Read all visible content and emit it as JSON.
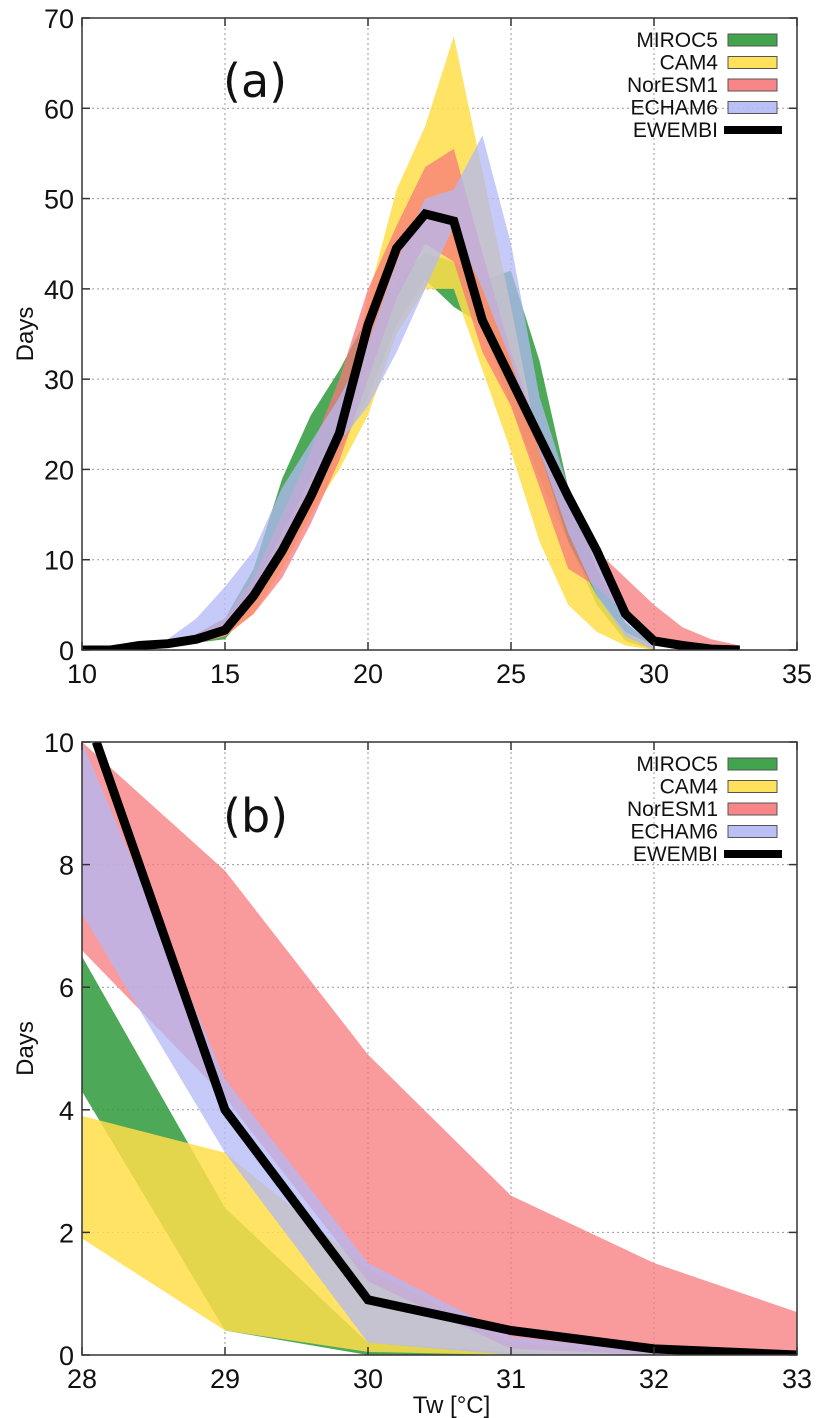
{
  "chart_data": [
    {
      "type": "area",
      "panel_label": "(a)",
      "title": "",
      "xlabel": "",
      "ylabel": "Days",
      "xlim": [
        10,
        35
      ],
      "ylim": [
        0,
        70
      ],
      "xticks": [
        10,
        15,
        20,
        25,
        30,
        35
      ],
      "yticks": [
        0,
        10,
        20,
        30,
        40,
        50,
        60,
        70
      ],
      "grid": true,
      "legend_position": "top-right",
      "legend": [
        "MIROC5",
        "CAM4",
        "NorESM1",
        "ECHAM6",
        "EWEMBI"
      ],
      "series": [
        {
          "name": "MIROC5",
          "kind": "band",
          "color": "#2e9a3a",
          "opacity": 0.85,
          "x": [
            12,
            13,
            14,
            15,
            16,
            17,
            18,
            19,
            20,
            21,
            22,
            23,
            24,
            25,
            26,
            27,
            28,
            29,
            30
          ],
          "lower": [
            0.2,
            0.4,
            0.8,
            1.2,
            5,
            11,
            17,
            22,
            28,
            36,
            41,
            38,
            36,
            27,
            19,
            12,
            5,
            1,
            0
          ],
          "upper": [
            0.5,
            0.9,
            1.8,
            3.5,
            9,
            19,
            26,
            31,
            37,
            41,
            44,
            43,
            41,
            42,
            32,
            18,
            9,
            3,
            0.5
          ]
        },
        {
          "name": "CAM4",
          "kind": "band",
          "color": "#ffde4a",
          "opacity": 0.85,
          "x": [
            12,
            13,
            14,
            15,
            16,
            17,
            18,
            19,
            20,
            21,
            22,
            23,
            24,
            25,
            26,
            27,
            28,
            29,
            30
          ],
          "lower": [
            0.2,
            0.4,
            0.8,
            1.5,
            4,
            9,
            15,
            20,
            26,
            35,
            40,
            40,
            31,
            22,
            12,
            5,
            2,
            0.5,
            0
          ],
          "upper": [
            0.5,
            0.9,
            1.8,
            3,
            7,
            13,
            19,
            25,
            39,
            51,
            58,
            68,
            53,
            38,
            22,
            12,
            6,
            2,
            0.5
          ]
        },
        {
          "name": "NorESM1",
          "kind": "band",
          "color": "#f7797b",
          "opacity": 0.75,
          "x": [
            12,
            13,
            14,
            15,
            16,
            17,
            18,
            19,
            20,
            21,
            22,
            23,
            24,
            25,
            26,
            27,
            28,
            29,
            30,
            31,
            32,
            33
          ],
          "lower": [
            0.2,
            0.4,
            0.8,
            1.5,
            4,
            8,
            14,
            21,
            30,
            39,
            45,
            43,
            33,
            27,
            18,
            9,
            7,
            4,
            1,
            0.3,
            0.1,
            0
          ],
          "upper": [
            0.5,
            0.9,
            1.8,
            3.5,
            8,
            15,
            22,
            30,
            40,
            47,
            53.5,
            55.5,
            44,
            33,
            24,
            16,
            11,
            8,
            5,
            2.5,
            1.2,
            0.5
          ]
        },
        {
          "name": "ECHAM6",
          "kind": "band",
          "color": "#b3b8f5",
          "opacity": 0.75,
          "x": [
            12,
            13,
            14,
            15,
            16,
            17,
            18,
            19,
            20,
            21,
            22,
            23,
            24,
            25,
            26,
            27,
            28,
            29,
            30
          ],
          "lower": [
            0.2,
            0.5,
            1,
            2,
            6,
            12,
            18,
            23,
            27,
            33,
            40,
            47,
            40,
            32,
            22,
            13,
            6,
            1.5,
            0
          ],
          "upper": [
            0.5,
            1.2,
            3.5,
            7,
            11,
            18,
            23,
            28,
            34,
            43,
            50,
            51,
            57,
            45,
            28,
            18,
            12,
            4,
            1
          ]
        },
        {
          "name": "EWEMBI",
          "kind": "line",
          "color": "#000000",
          "x": [
            10,
            11,
            12,
            13,
            14,
            15,
            16,
            17,
            18,
            19,
            20,
            21,
            22,
            23,
            24,
            25,
            26,
            27,
            28,
            29,
            30,
            31,
            32,
            33
          ],
          "values": [
            0,
            0,
            0.5,
            0.7,
            1.2,
            2.2,
            6,
            11,
            17,
            24,
            36,
            44.5,
            48.3,
            47.5,
            36.5,
            30,
            23.5,
            17,
            11,
            4,
            1,
            0.5,
            0.1,
            0
          ]
        }
      ]
    },
    {
      "type": "area",
      "panel_label": "(b)",
      "title": "",
      "xlabel": "Tw [°C]",
      "ylabel": "Days",
      "xlim": [
        28,
        33
      ],
      "ylim": [
        0,
        10
      ],
      "xticks": [
        28,
        29,
        30,
        31,
        32,
        33
      ],
      "yticks": [
        0,
        2,
        4,
        6,
        8,
        10
      ],
      "grid": true,
      "legend_position": "top-right",
      "legend": [
        "MIROC5",
        "CAM4",
        "NorESM1",
        "ECHAM6",
        "EWEMBI"
      ],
      "series": [
        {
          "name": "MIROC5",
          "kind": "band",
          "color": "#2e9a3a",
          "opacity": 0.85,
          "x": [
            28,
            29,
            30,
            31,
            32,
            33
          ],
          "lower": [
            4.3,
            0.4,
            0,
            0,
            0,
            0
          ],
          "upper": [
            6.5,
            2.4,
            0.2,
            0.05,
            0,
            0
          ]
        },
        {
          "name": "CAM4",
          "kind": "band",
          "color": "#ffde4a",
          "opacity": 0.85,
          "x": [
            28,
            29,
            30,
            31,
            32,
            33
          ],
          "lower": [
            1.9,
            0.4,
            0.05,
            0,
            0,
            0
          ],
          "upper": [
            3.9,
            3.3,
            1.4,
            0.2,
            0.05,
            0
          ]
        },
        {
          "name": "NorESM1",
          "kind": "band",
          "color": "#f7797b",
          "opacity": 0.75,
          "x": [
            28,
            29,
            30,
            31,
            32,
            33
          ],
          "lower": [
            6.6,
            4.2,
            1.2,
            0.1,
            0,
            0
          ],
          "upper": [
            10,
            7.9,
            4.9,
            2.6,
            1.5,
            0.7
          ]
        },
        {
          "name": "ECHAM6",
          "kind": "band",
          "color": "#b3b8f5",
          "opacity": 0.75,
          "x": [
            28,
            29,
            30,
            31,
            32,
            33
          ],
          "lower": [
            7.2,
            3.3,
            0.2,
            0,
            0,
            0
          ],
          "upper": [
            10,
            4.5,
            1.5,
            0.3,
            0.05,
            0
          ]
        },
        {
          "name": "EWEMBI",
          "kind": "line",
          "color": "#000000",
          "x": [
            28.1,
            29,
            30,
            31,
            32,
            33
          ],
          "values": [
            10,
            4,
            0.9,
            0.4,
            0.1,
            0
          ]
        }
      ]
    }
  ]
}
